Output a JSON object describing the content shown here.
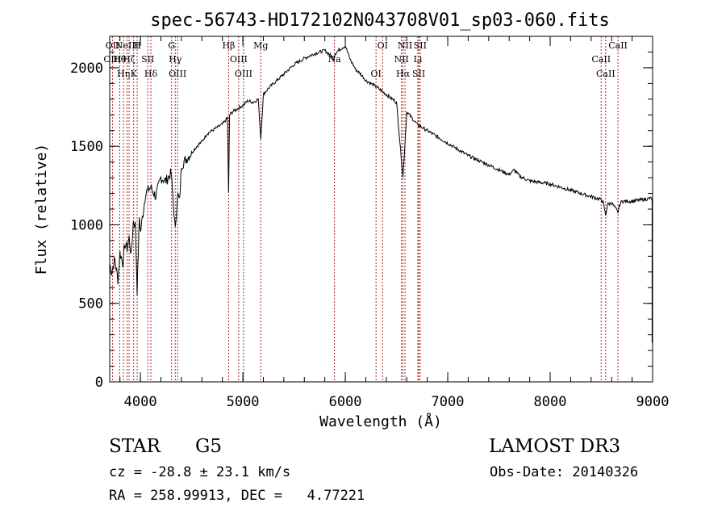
{
  "chart_data": {
    "type": "line",
    "title": "spec-56743-HD172102N043708V01_sp03-060.fits",
    "xlabel": "Wavelength (Å)",
    "ylabel": "Flux (relative)",
    "xlim": [
      3700,
      9000
    ],
    "ylim": [
      0,
      2200
    ],
    "xticks": [
      4000,
      5000,
      6000,
      7000,
      8000,
      9000
    ],
    "yticks": [
      0,
      500,
      1000,
      1500,
      2000
    ],
    "xtick_labels": [
      "4000",
      "5000",
      "6000",
      "7000",
      "8000",
      "9000"
    ],
    "ytick_labels": [
      "0",
      "500",
      "1000",
      "1500",
      "2000"
    ],
    "series": [
      {
        "name": "flux",
        "x": [
          3700,
          3720,
          3750,
          3780,
          3800,
          3830,
          3850,
          3870,
          3890,
          3910,
          3930,
          3950,
          3968,
          3990,
          4000,
          4050,
          4100,
          4150,
          4200,
          4250,
          4300,
          4320,
          4340,
          4360,
          4383,
          4400,
          4450,
          4500,
          4550,
          4600,
          4650,
          4700,
          4750,
          4800,
          4850,
          4861,
          4870,
          4900,
          4950,
          5000,
          5050,
          5100,
          5150,
          5175,
          5200,
          5250,
          5300,
          5400,
          5500,
          5600,
          5700,
          5800,
          5890,
          5900,
          5950,
          6000,
          6050,
          6100,
          6150,
          6200,
          6300,
          6400,
          6500,
          6563,
          6600,
          6700,
          6800,
          6900,
          7000,
          7100,
          7200,
          7300,
          7400,
          7500,
          7600,
          7650,
          7700,
          7800,
          7900,
          8000,
          8100,
          8200,
          8300,
          8400,
          8498,
          8520,
          8542,
          8560,
          8600,
          8662,
          8680,
          8700,
          8800,
          8900,
          8990
        ],
        "y": [
          750,
          700,
          780,
          650,
          820,
          760,
          880,
          850,
          920,
          800,
          1020,
          1000,
          580,
          1050,
          950,
          1200,
          1240,
          1180,
          1300,
          1280,
          1330,
          1150,
          960,
          1200,
          1150,
          1380,
          1420,
          1460,
          1500,
          1530,
          1580,
          1600,
          1620,
          1640,
          1680,
          1200,
          1700,
          1720,
          1740,
          1760,
          1790,
          1780,
          1800,
          1550,
          1830,
          1870,
          1900,
          1960,
          2020,
          2060,
          2090,
          2110,
          2060,
          2090,
          2120,
          2140,
          2050,
          1990,
          1960,
          1920,
          1880,
          1830,
          1780,
          1300,
          1720,
          1640,
          1600,
          1560,
          1520,
          1480,
          1440,
          1410,
          1380,
          1350,
          1320,
          1350,
          1310,
          1280,
          1270,
          1260,
          1240,
          1220,
          1200,
          1180,
          1160,
          1140,
          1060,
          1130,
          1140,
          1080,
          1130,
          1150,
          1150,
          1160,
          1170
        ]
      }
    ],
    "lines": [
      {
        "x": 3727,
        "labels": [
          "OII",
          "OIII"
        ]
      },
      {
        "x": 3797,
        "labels": [
          "Hθ"
        ]
      },
      {
        "x": 3835,
        "labels": [
          "Hη"
        ]
      },
      {
        "x": 3869,
        "labels": [
          "NeIII"
        ]
      },
      {
        "x": 3889,
        "labels": [
          "Hζ"
        ]
      },
      {
        "x": 3934,
        "labels": [
          "K"
        ]
      },
      {
        "x": 3968,
        "labels": [
          "H"
        ]
      },
      {
        "x": 4072,
        "labels": [
          "SII"
        ]
      },
      {
        "x": 4102,
        "labels": [
          "Hδ"
        ]
      },
      {
        "x": 4304,
        "labels": [
          "G"
        ]
      },
      {
        "x": 4340,
        "labels": [
          "Hγ"
        ]
      },
      {
        "x": 4363,
        "labels": [
          "OIII"
        ]
      },
      {
        "x": 4861,
        "labels": [
          "Hβ"
        ]
      },
      {
        "x": 4959,
        "labels": [
          "OIII"
        ]
      },
      {
        "x": 5007,
        "labels": [
          "OIII"
        ]
      },
      {
        "x": 5175,
        "labels": [
          "Mg"
        ]
      },
      {
        "x": 5894,
        "labels": [
          "Na"
        ]
      },
      {
        "x": 6300,
        "labels": [
          "OI"
        ]
      },
      {
        "x": 6364,
        "labels": [
          "OI"
        ]
      },
      {
        "x": 6548,
        "labels": [
          "NII"
        ]
      },
      {
        "x": 6563,
        "labels": [
          "Hα"
        ]
      },
      {
        "x": 6583,
        "labels": [
          "NII"
        ]
      },
      {
        "x": 6708,
        "labels": [
          "Li"
        ]
      },
      {
        "x": 6717,
        "labels": [
          "SII"
        ]
      },
      {
        "x": 6731,
        "labels": [
          "SII"
        ]
      },
      {
        "x": 8498,
        "labels": [
          "CaII"
        ]
      },
      {
        "x": 8542,
        "labels": [
          "CaII"
        ]
      },
      {
        "x": 8662,
        "labels": [
          "CaII"
        ]
      }
    ],
    "line_color": "#b22222",
    "trace_color": "#000000"
  },
  "footer": {
    "object_class": "STAR",
    "subclass": "G5",
    "survey": "LAMOST DR3",
    "cz": "cz = -28.8 ± 23.1 km/s",
    "obs_date": "Obs-Date: 20140326",
    "coords": "RA = 258.99913, DEC =   4.77221"
  }
}
